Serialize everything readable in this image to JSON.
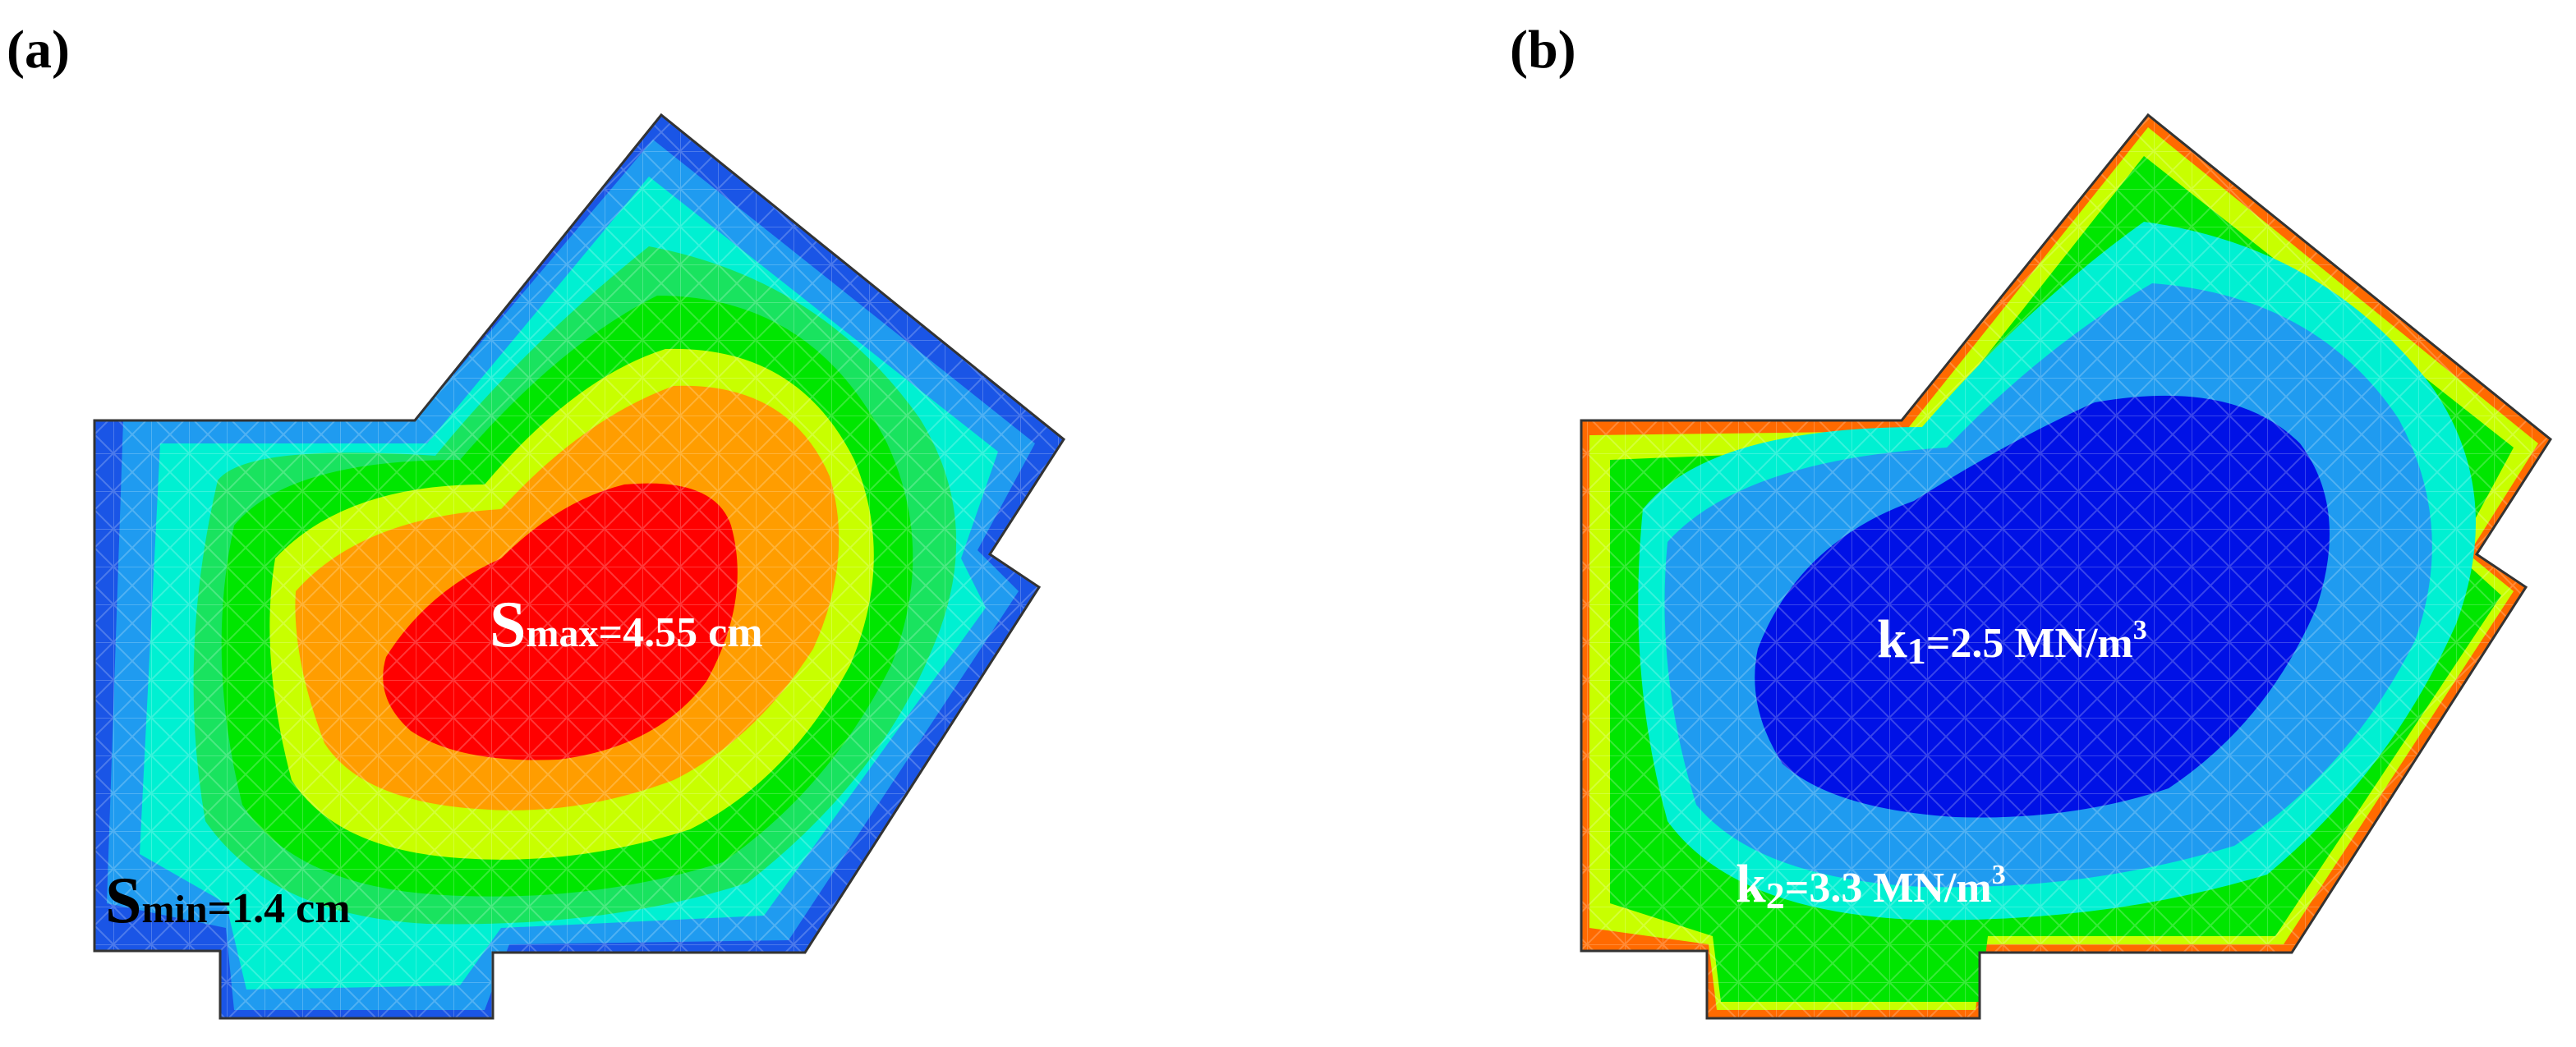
{
  "panels": [
    {
      "label": "(a)",
      "annotations": [
        {
          "main": "S",
          "sub": "max",
          "rest": "=4.55 cm",
          "color": "#ffffff"
        },
        {
          "main": "S",
          "sub": "min",
          "rest": "=1.4 cm",
          "color": "#000000"
        }
      ],
      "contour_colors": [
        "#1a55e6",
        "#1f9bf0",
        "#00f0d2",
        "#19e35f",
        "#00e600",
        "#c8ff00",
        "#ff9d00",
        "#ff0000"
      ]
    },
    {
      "label": "(b)",
      "annotations": [
        {
          "main": "k",
          "sub": "1",
          "rest": "=2.5 MN/m",
          "sup": "3",
          "color": "#ffffff"
        },
        {
          "main": "k",
          "sub": "2",
          "rest": "=3.3 MN/m",
          "sup": "3",
          "color": "#ffffff"
        }
      ],
      "contour_colors": [
        "#ff6a00",
        "#c8ff00",
        "#00e600",
        "#00f0d2",
        "#1f9bf0",
        "#0011e6"
      ]
    }
  ]
}
